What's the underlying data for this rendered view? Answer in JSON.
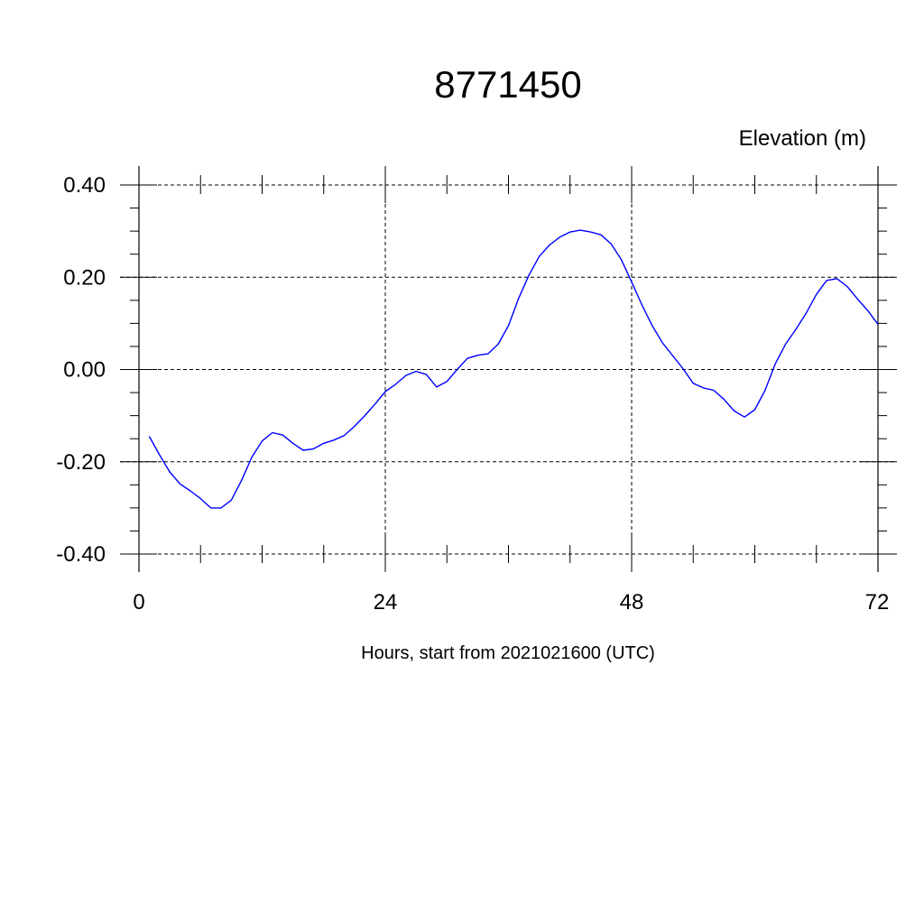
{
  "chart_data": {
    "type": "line",
    "title": "8771450",
    "ylabel": "Elevation (m)",
    "xlabel": "Hours, start from 2021021600 (UTC)",
    "xlim": [
      0,
      72
    ],
    "ylim": [
      -0.4,
      0.4
    ],
    "x_ticks": [
      0,
      24,
      48,
      72
    ],
    "x_tick_labels": [
      "0",
      "24",
      "48",
      "72"
    ],
    "y_ticks": [
      0.4,
      0.2,
      0.0,
      -0.2,
      -0.4
    ],
    "y_tick_labels": [
      "0.40",
      "0.20",
      "0.00",
      "-0.20",
      "-0.40"
    ],
    "grid": true,
    "series": [
      {
        "color": "#0000ff",
        "x": [
          1,
          2,
          3,
          4,
          5,
          6,
          7,
          8,
          9,
          10,
          11,
          12,
          13,
          14,
          15,
          16,
          17,
          18,
          19,
          20,
          21,
          22,
          23,
          24,
          25,
          26,
          27,
          28,
          29,
          30,
          31,
          32,
          33,
          34,
          35,
          36,
          37,
          38,
          39,
          40,
          41,
          42,
          43,
          44,
          45,
          46,
          47,
          48,
          49,
          50,
          51,
          52,
          53,
          54,
          55,
          56,
          57,
          58,
          59,
          60,
          61,
          62,
          63,
          64,
          65,
          66,
          67,
          68,
          69,
          70,
          71,
          72
        ],
        "y": [
          -0.145,
          -0.185,
          -0.222,
          -0.248,
          -0.263,
          -0.28,
          -0.3,
          -0.3,
          -0.283,
          -0.24,
          -0.19,
          -0.155,
          -0.137,
          -0.142,
          -0.16,
          -0.175,
          -0.172,
          -0.16,
          -0.153,
          -0.143,
          -0.123,
          -0.1,
          -0.075,
          -0.048,
          -0.032,
          -0.013,
          -0.004,
          -0.011,
          -0.038,
          -0.026,
          0.0,
          0.024,
          0.031,
          0.034,
          0.055,
          0.095,
          0.155,
          0.205,
          0.245,
          0.27,
          0.287,
          0.298,
          0.302,
          0.298,
          0.292,
          0.272,
          0.238,
          0.19,
          0.14,
          0.095,
          0.058,
          0.03,
          0.002,
          -0.03,
          -0.04,
          -0.045,
          -0.065,
          -0.09,
          -0.103,
          -0.087,
          -0.045,
          0.013,
          0.055,
          0.087,
          0.122,
          0.163,
          0.193,
          0.197,
          0.18,
          0.153,
          0.128,
          0.098
        ]
      }
    ]
  }
}
